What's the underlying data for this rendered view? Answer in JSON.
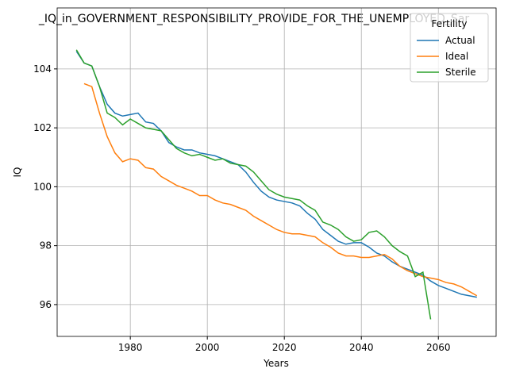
{
  "chart_data": {
    "type": "line",
    "title": "_IQ_in_GOVERNMENT_RESPONSIBILITY_PROVIDE_FOR_THE_UNEMPLOYED_Sar",
    "xlabel": "Years",
    "ylabel": "IQ",
    "x": [
      1966,
      1968,
      1970,
      1972,
      1974,
      1976,
      1978,
      1980,
      1982,
      1984,
      1986,
      1988,
      1990,
      1992,
      1994,
      1996,
      1998,
      2000,
      2002,
      2004,
      2006,
      2008,
      2010,
      2012,
      2014,
      2016,
      2018,
      2020,
      2022,
      2024,
      2026,
      2028,
      2030,
      2032,
      2034,
      2036,
      2038,
      2040,
      2042,
      2044,
      2046,
      2048,
      2050,
      2052,
      2054,
      2056,
      2058,
      2060,
      2062,
      2064,
      2066,
      2068,
      2070
    ],
    "series": [
      {
        "name": "Actual",
        "color": "#1f77b4",
        "values": [
          104.6,
          104.2,
          104.1,
          103.4,
          102.8,
          102.5,
          102.4,
          102.45,
          102.5,
          102.2,
          102.15,
          101.9,
          101.5,
          101.35,
          101.25,
          101.25,
          101.15,
          101.1,
          101.05,
          100.95,
          100.85,
          100.75,
          100.5,
          100.15,
          99.85,
          99.65,
          99.55,
          99.5,
          99.45,
          99.35,
          99.1,
          98.9,
          98.55,
          98.35,
          98.15,
          98.05,
          98.1,
          98.1,
          97.95,
          97.75,
          97.65,
          97.45,
          97.3,
          97.2,
          97.1,
          97.0,
          96.8,
          96.65,
          96.55,
          96.45,
          96.35,
          96.3,
          96.25
        ]
      },
      {
        "name": "Ideal",
        "color": "#ff7f0e",
        "values": [
          null,
          103.5,
          103.4,
          102.5,
          101.7,
          101.15,
          100.85,
          100.95,
          100.9,
          100.65,
          100.6,
          100.35,
          100.2,
          100.05,
          99.95,
          99.85,
          99.7,
          99.7,
          99.55,
          99.45,
          99.4,
          99.3,
          99.2,
          99.0,
          98.85,
          98.7,
          98.55,
          98.45,
          98.4,
          98.4,
          98.35,
          98.3,
          98.1,
          97.95,
          97.75,
          97.65,
          97.65,
          97.6,
          97.6,
          97.65,
          97.7,
          97.55,
          97.3,
          97.15,
          97.05,
          96.95,
          96.9,
          96.85,
          96.75,
          96.7,
          96.6,
          96.45,
          96.3
        ]
      },
      {
        "name": "Sterile",
        "color": "#2ca02c",
        "values": [
          104.65,
          104.2,
          104.1,
          103.4,
          102.5,
          102.35,
          102.1,
          102.3,
          102.15,
          102.0,
          101.95,
          101.9,
          101.6,
          101.3,
          101.15,
          101.05,
          101.1,
          101.0,
          100.9,
          100.95,
          100.8,
          100.75,
          100.7,
          100.5,
          100.2,
          99.9,
          99.75,
          99.65,
          99.6,
          99.55,
          99.35,
          99.2,
          98.8,
          98.7,
          98.55,
          98.3,
          98.15,
          98.2,
          98.45,
          98.5,
          98.3,
          98.0,
          97.8,
          97.65,
          96.95,
          97.1,
          95.5,
          null,
          null,
          null,
          null,
          null,
          null
        ]
      }
    ],
    "xlim": [
      1961,
      2075
    ],
    "xticks": [
      1980,
      2000,
      2020,
      2040,
      2060
    ],
    "ylim": [
      94.92,
      106.07
    ],
    "yticks": [
      96,
      98,
      100,
      102,
      104
    ],
    "grid": true,
    "legend_title": "Fertility",
    "legend_loc": "upper right"
  }
}
